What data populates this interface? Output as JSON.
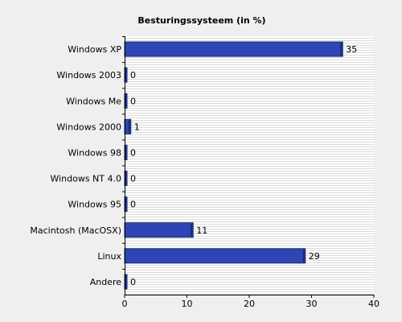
{
  "chart_data": {
    "type": "bar",
    "orientation": "horizontal",
    "title": "Besturingssysteem (in %)",
    "categories": [
      "Windows XP",
      "Windows 2003",
      "Windows Me",
      "Windows 2000",
      "Windows 98",
      "Windows NT 4.0",
      "Windows 95",
      "Macintosh (MacOSX)",
      "Linux",
      "Andere"
    ],
    "values": [
      35,
      0,
      0,
      1,
      0,
      0,
      0,
      11,
      29,
      0
    ],
    "xlim": [
      0,
      40
    ],
    "xticks": [
      0,
      10,
      20,
      30,
      40
    ],
    "grid": true,
    "colors": {
      "background": "#efefef",
      "plot_background": "#ffffff",
      "grid_line": "#d9d9d9",
      "bar_fill": "#2e46b4",
      "bar_edge": "#1a2a70",
      "axis": "#000000"
    }
  }
}
